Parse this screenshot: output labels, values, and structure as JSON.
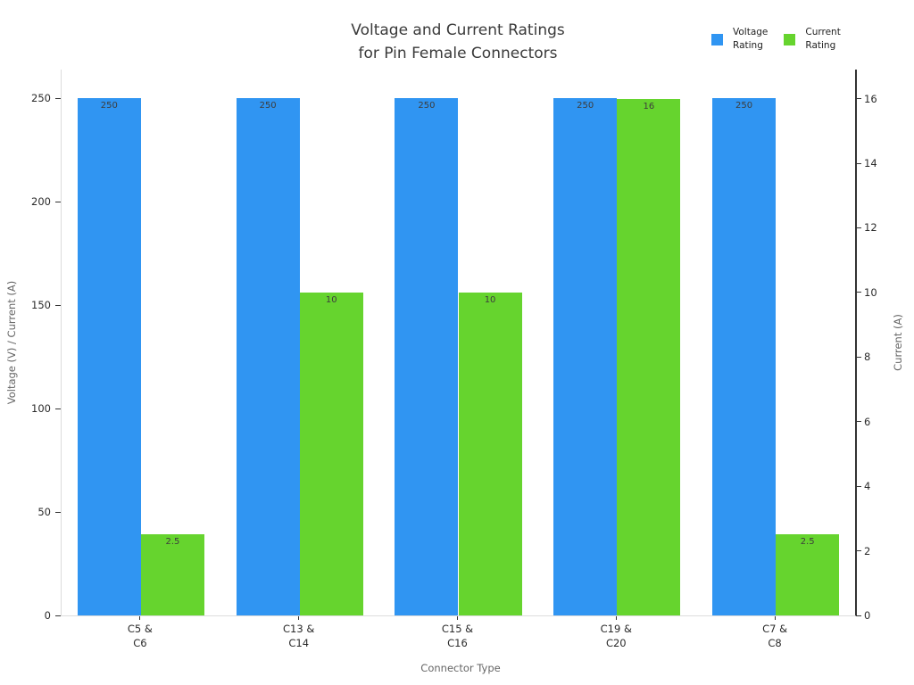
{
  "header": {
    "title_line1": "Voltage and Current Ratings",
    "title_line2": "for Pin Female Connectors"
  },
  "legend": {
    "items": [
      {
        "line1": "Voltage",
        "line2": "Rating",
        "color": "#3095f2"
      },
      {
        "line1": "Current",
        "line2": "Rating",
        "color": "#66d42e"
      }
    ]
  },
  "chart_data": {
    "type": "bar",
    "title": "Voltage and Current Ratings for Pin Female Connectors",
    "categories": [
      "C5 & C6",
      "C13 & C14",
      "C15 & C16",
      "C19 & C20",
      "C7 & C8"
    ],
    "categories_display": [
      [
        "C5 &",
        "C6"
      ],
      [
        "C13 &",
        "C14"
      ],
      [
        "C15 &",
        "C16"
      ],
      [
        "C19 &",
        "C20"
      ],
      [
        "C7 &",
        "C8"
      ]
    ],
    "series": [
      {
        "name": "Voltage Rating",
        "axis": "left",
        "color": "#3095f2",
        "values": [
          250,
          250,
          250,
          250,
          250
        ]
      },
      {
        "name": "Current Rating",
        "axis": "right",
        "color": "#66d42e",
        "values": [
          2.5,
          10,
          10,
          16,
          2.5
        ]
      }
    ],
    "bar_value_labels": {
      "voltage": [
        "250",
        "250",
        "250",
        "250",
        "250"
      ],
      "current": [
        "2.5",
        "10",
        "10",
        "16",
        "2.5"
      ]
    },
    "xlabel": "Connector Type",
    "ylabel_left": "Voltage (V) / Current (A)",
    "ylabel_right": "Current (A)",
    "ylim_left": [
      0,
      264
    ],
    "ylim_right": [
      0,
      16.9
    ],
    "yticks_left": [
      0,
      50,
      100,
      150,
      200,
      250
    ],
    "yticks_right": [
      0,
      2,
      4,
      6,
      8,
      10,
      12,
      14,
      16
    ],
    "grid": false,
    "legend_position": "top-right"
  }
}
